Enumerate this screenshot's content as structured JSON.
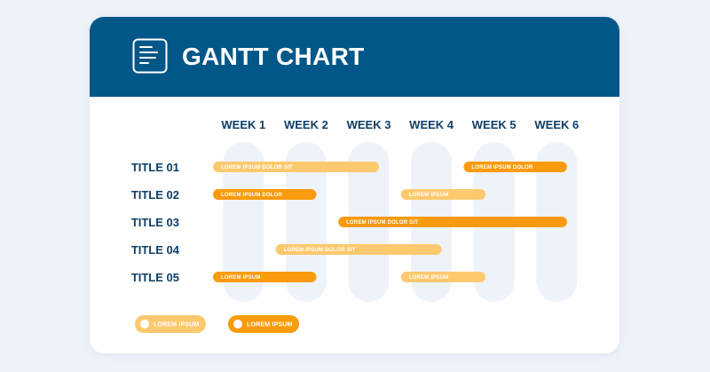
{
  "header": {
    "title": "GANTT CHART",
    "icon": "document-lines-icon",
    "color": "#025789"
  },
  "chart_data": {
    "type": "gantt",
    "weeks": [
      "WEEK 1",
      "WEEK 2",
      "WEEK 3",
      "WEEK 4",
      "WEEK 5",
      "WEEK 6"
    ],
    "rows": [
      "TITLE 01",
      "TITLE 02",
      "TITLE 03",
      "TITLE 04",
      "TITLE 05"
    ],
    "tasks": [
      {
        "row": 0,
        "start": 1,
        "end": 3.65,
        "label": "LOREM IPSUM DOLOR SIT",
        "style": "light"
      },
      {
        "row": 0,
        "start": 5,
        "end": 6.65,
        "label": "LOREM IPSUM DOLOR",
        "style": "dark"
      },
      {
        "row": 1,
        "start": 1,
        "end": 2.65,
        "label": "LOREM IPSUM DOLOR",
        "style": "dark"
      },
      {
        "row": 1,
        "start": 4,
        "end": 5.35,
        "label": "LOREM IPSUM",
        "style": "light"
      },
      {
        "row": 2,
        "start": 3,
        "end": 6.65,
        "label": "LOREM IPSUM DOLOR SIT",
        "style": "dark"
      },
      {
        "row": 3,
        "start": 2,
        "end": 4.65,
        "label": "LOREM IPSUM DOLOR SIT",
        "style": "light"
      },
      {
        "row": 4,
        "start": 1,
        "end": 2.65,
        "label": "LOREM IPSUM",
        "style": "dark"
      },
      {
        "row": 4,
        "start": 4,
        "end": 5.35,
        "label": "LOREM IPSUM",
        "style": "light"
      }
    ],
    "legend": [
      {
        "label": "LOREM IPSUM",
        "style": "light"
      },
      {
        "label": "LOREM IPSUM",
        "style": "dark"
      }
    ],
    "colors": {
      "light": "#fdc96f",
      "dark": "#f99b0c",
      "column": "#eef3fa",
      "text": "#0e3f66"
    }
  }
}
